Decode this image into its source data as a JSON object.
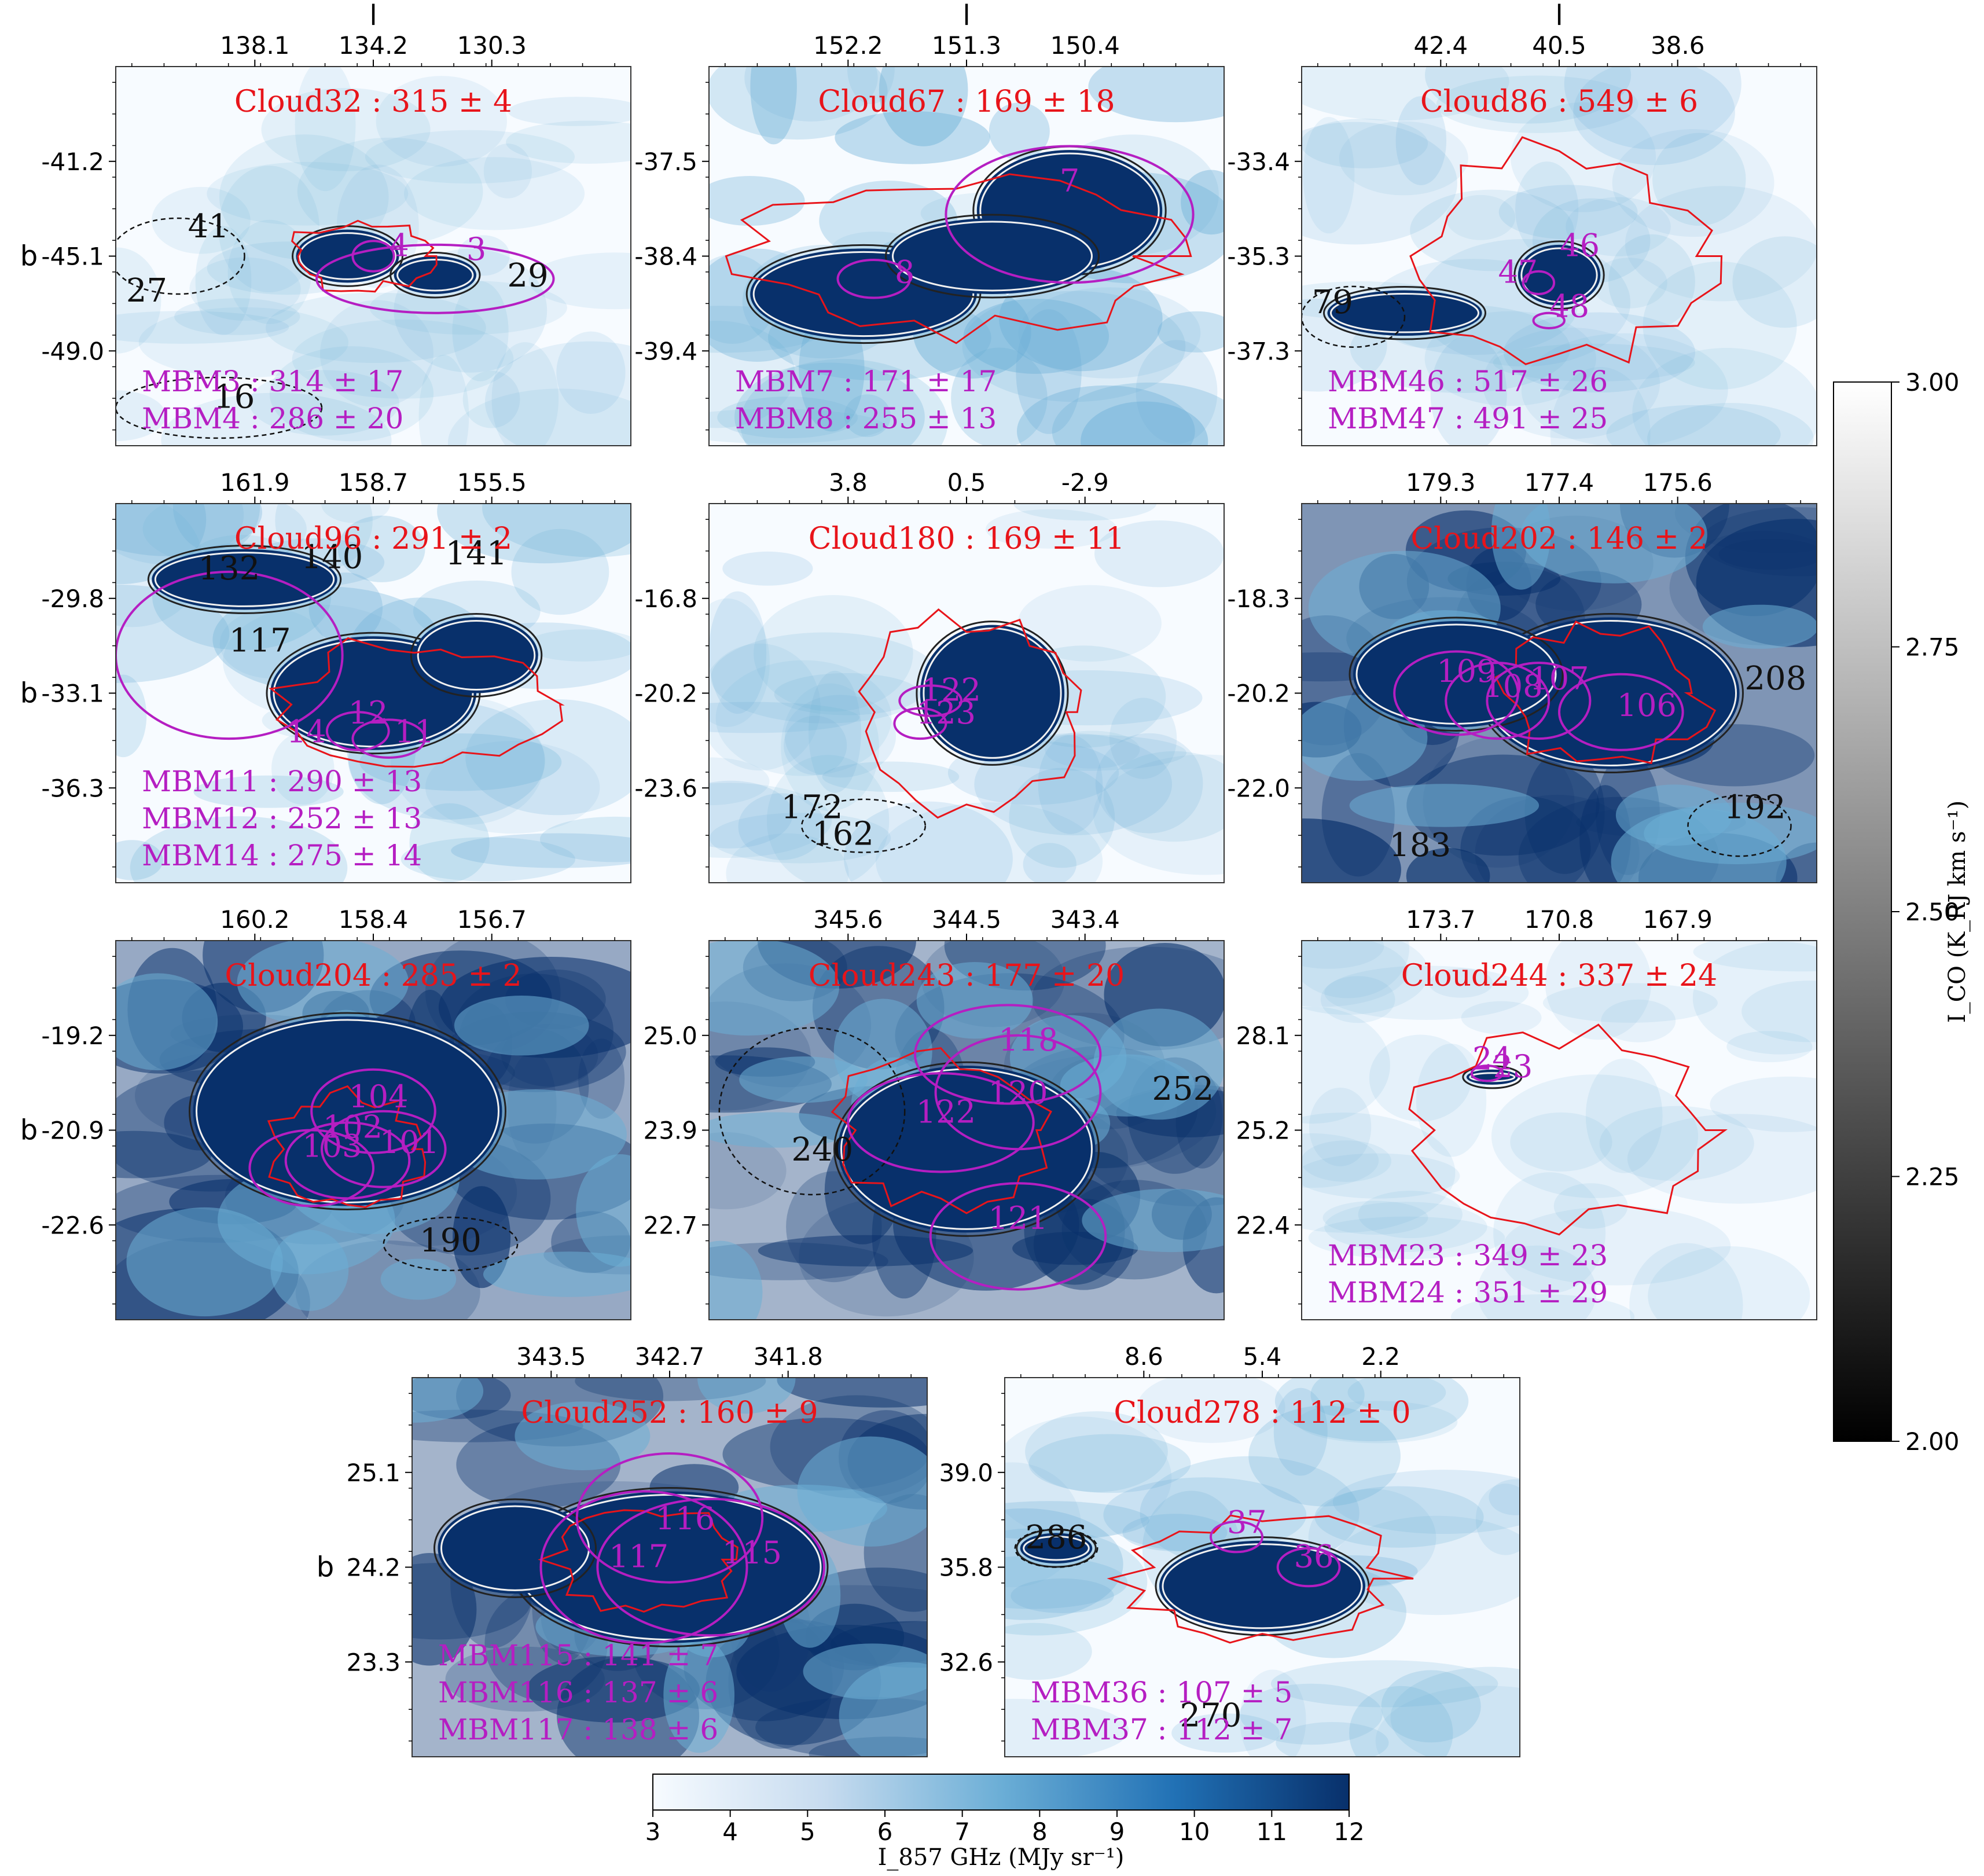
{
  "chart_data": [
    {
      "type": "heatmap",
      "panel": 1,
      "title": "Cloud32 : 315 ± 4",
      "xlabel": "l",
      "ylabel": "b",
      "xticks": [
        "138.1",
        "134.2",
        "130.3"
      ],
      "yticks": [
        "-41.2",
        "-45.1",
        "-49.0"
      ],
      "density": 0.05,
      "cloud_labels": [
        "41",
        "27",
        "29",
        "16"
      ],
      "mbm_labels": [
        "4",
        "3"
      ],
      "mbm_text": [
        "MBM3 : 314 ± 17",
        "MBM4 : 286 ± 20"
      ]
    },
    {
      "type": "heatmap",
      "panel": 2,
      "title": "Cloud67 : 169 ± 18",
      "xlabel": "l",
      "ylabel": "",
      "xticks": [
        "152.2",
        "151.3",
        "150.4"
      ],
      "yticks": [
        "-37.5",
        "-38.4",
        "-39.4"
      ],
      "density": 0.45,
      "cloud_labels": [],
      "mbm_labels": [
        "8",
        "7"
      ],
      "mbm_text": [
        "MBM7 : 171 ± 17",
        "MBM8 : 255 ± 13"
      ]
    },
    {
      "type": "heatmap",
      "panel": 3,
      "title": "Cloud86 : 549 ± 6",
      "xlabel": "l",
      "ylabel": "",
      "xticks": [
        "42.4",
        "40.5",
        "38.6"
      ],
      "yticks": [
        "-33.4",
        "-35.3",
        "-37.3"
      ],
      "density": 0.1,
      "cloud_labels": [
        "79"
      ],
      "mbm_labels": [
        "46",
        "47",
        "48"
      ],
      "mbm_text": [
        "MBM46 : 517 ± 26",
        "MBM47 : 491 ± 25"
      ]
    },
    {
      "type": "heatmap",
      "panel": 4,
      "title": "Cloud96 : 291 ± 2",
      "xlabel": "",
      "ylabel": "b",
      "xticks": [
        "161.9",
        "158.7",
        "155.5"
      ],
      "yticks": [
        "-29.8",
        "-33.1",
        "-36.3"
      ],
      "density": 0.3,
      "cloud_labels": [
        "132",
        "140",
        "141",
        "117"
      ],
      "mbm_labels": [
        "14",
        "12",
        "11"
      ],
      "mbm_text": [
        "MBM11 : 290 ± 13",
        "MBM12 : 252 ± 13",
        "MBM14 : 275 ± 14"
      ]
    },
    {
      "type": "heatmap",
      "panel": 5,
      "title": "Cloud180 : 169 ± 11",
      "xlabel": "",
      "ylabel": "",
      "xticks": [
        "3.8",
        "0.5",
        "-2.9"
      ],
      "yticks": [
        "-16.8",
        "-20.2",
        "-23.6"
      ],
      "density": 0.1,
      "cloud_labels": [
        "172",
        "162"
      ],
      "mbm_labels": [
        "122",
        "123"
      ],
      "mbm_text": []
    },
    {
      "type": "heatmap",
      "panel": 6,
      "title": "Cloud202 : 146 ± 2",
      "xlabel": "",
      "ylabel": "",
      "xticks": [
        "179.3",
        "177.4",
        "175.6"
      ],
      "yticks": [
        "-18.3",
        "-20.2",
        "-22.0"
      ],
      "density": 0.85,
      "cloud_labels": [
        "208",
        "192",
        "183"
      ],
      "mbm_labels": [
        "109",
        "108",
        "107",
        "106"
      ],
      "mbm_text": []
    },
    {
      "type": "heatmap",
      "panel": 7,
      "title": "Cloud204 : 285 ± 2",
      "xlabel": "",
      "ylabel": "b",
      "xticks": [
        "160.2",
        "158.4",
        "156.7"
      ],
      "yticks": [
        "-19.2",
        "-20.9",
        "-22.6"
      ],
      "density": 0.75,
      "cloud_labels": [
        "190"
      ],
      "mbm_labels": [
        "104",
        "102",
        "103",
        "101"
      ],
      "mbm_text": []
    },
    {
      "type": "heatmap",
      "panel": 8,
      "title": "Cloud243 : 177 ± 20",
      "xlabel": "",
      "ylabel": "",
      "xticks": [
        "345.6",
        "344.5",
        "343.4"
      ],
      "yticks": [
        "25.0",
        "23.9",
        "22.7"
      ],
      "density": 0.7,
      "cloud_labels": [
        "240",
        "252"
      ],
      "mbm_labels": [
        "118",
        "120",
        "122",
        "121"
      ],
      "mbm_text": []
    },
    {
      "type": "heatmap",
      "panel": 9,
      "title": "Cloud244 : 337 ± 24",
      "xlabel": "",
      "ylabel": "",
      "xticks": [
        "173.7",
        "170.8",
        "167.9"
      ],
      "yticks": [
        "28.1",
        "25.2",
        "22.4"
      ],
      "density": 0.02,
      "cloud_labels": [],
      "mbm_labels": [
        "24",
        "23"
      ],
      "mbm_text": [
        "MBM23 : 349 ± 23",
        "MBM24 : 351 ± 29"
      ]
    },
    {
      "type": "heatmap",
      "panel": 10,
      "title": "Cloud252 : 160 ± 9",
      "xlabel": "",
      "ylabel": "b",
      "xticks": [
        "343.5",
        "342.7",
        "341.8"
      ],
      "yticks": [
        "25.1",
        "24.2",
        "23.3"
      ],
      "density": 0.7,
      "cloud_labels": [],
      "mbm_labels": [
        "116",
        "117",
        "115"
      ],
      "mbm_text": [
        "MBM115 : 141 ± 7",
        "MBM116 : 137 ± 6",
        "MBM117 : 138 ± 6"
      ]
    },
    {
      "type": "heatmap",
      "panel": 11,
      "title": "Cloud278 : 112 ± 0",
      "xlabel": "",
      "ylabel": "",
      "xticks": [
        "8.6",
        "5.4",
        "2.2"
      ],
      "yticks": [
        "39.0",
        "35.8",
        "32.6"
      ],
      "density": 0.25,
      "cloud_labels": [
        "286",
        "270"
      ],
      "mbm_labels": [
        "37",
        "36"
      ],
      "mbm_text": [
        "MBM36 : 107 ± 5",
        "MBM37 : 112 ± 7"
      ]
    }
  ],
  "colorbar_co": {
    "label": "I_CO (K_RJ km s⁻¹)",
    "ticks": [
      "2.00",
      "2.25",
      "2.50",
      "2.75",
      "3.00"
    ],
    "range": [
      2.0,
      3.0
    ]
  },
  "colorbar_857": {
    "label": "I_857 GHz (MJy sr⁻¹)",
    "ticks": [
      "3",
      "4",
      "5",
      "6",
      "7",
      "8",
      "9",
      "10",
      "11",
      "12"
    ],
    "range": [
      3,
      12
    ]
  },
  "colors": {
    "low": "#f7fbff",
    "mid": "#6aaed6",
    "high": "#08306b",
    "cloud": "#e8141a",
    "mbm": "#b51ec2"
  }
}
